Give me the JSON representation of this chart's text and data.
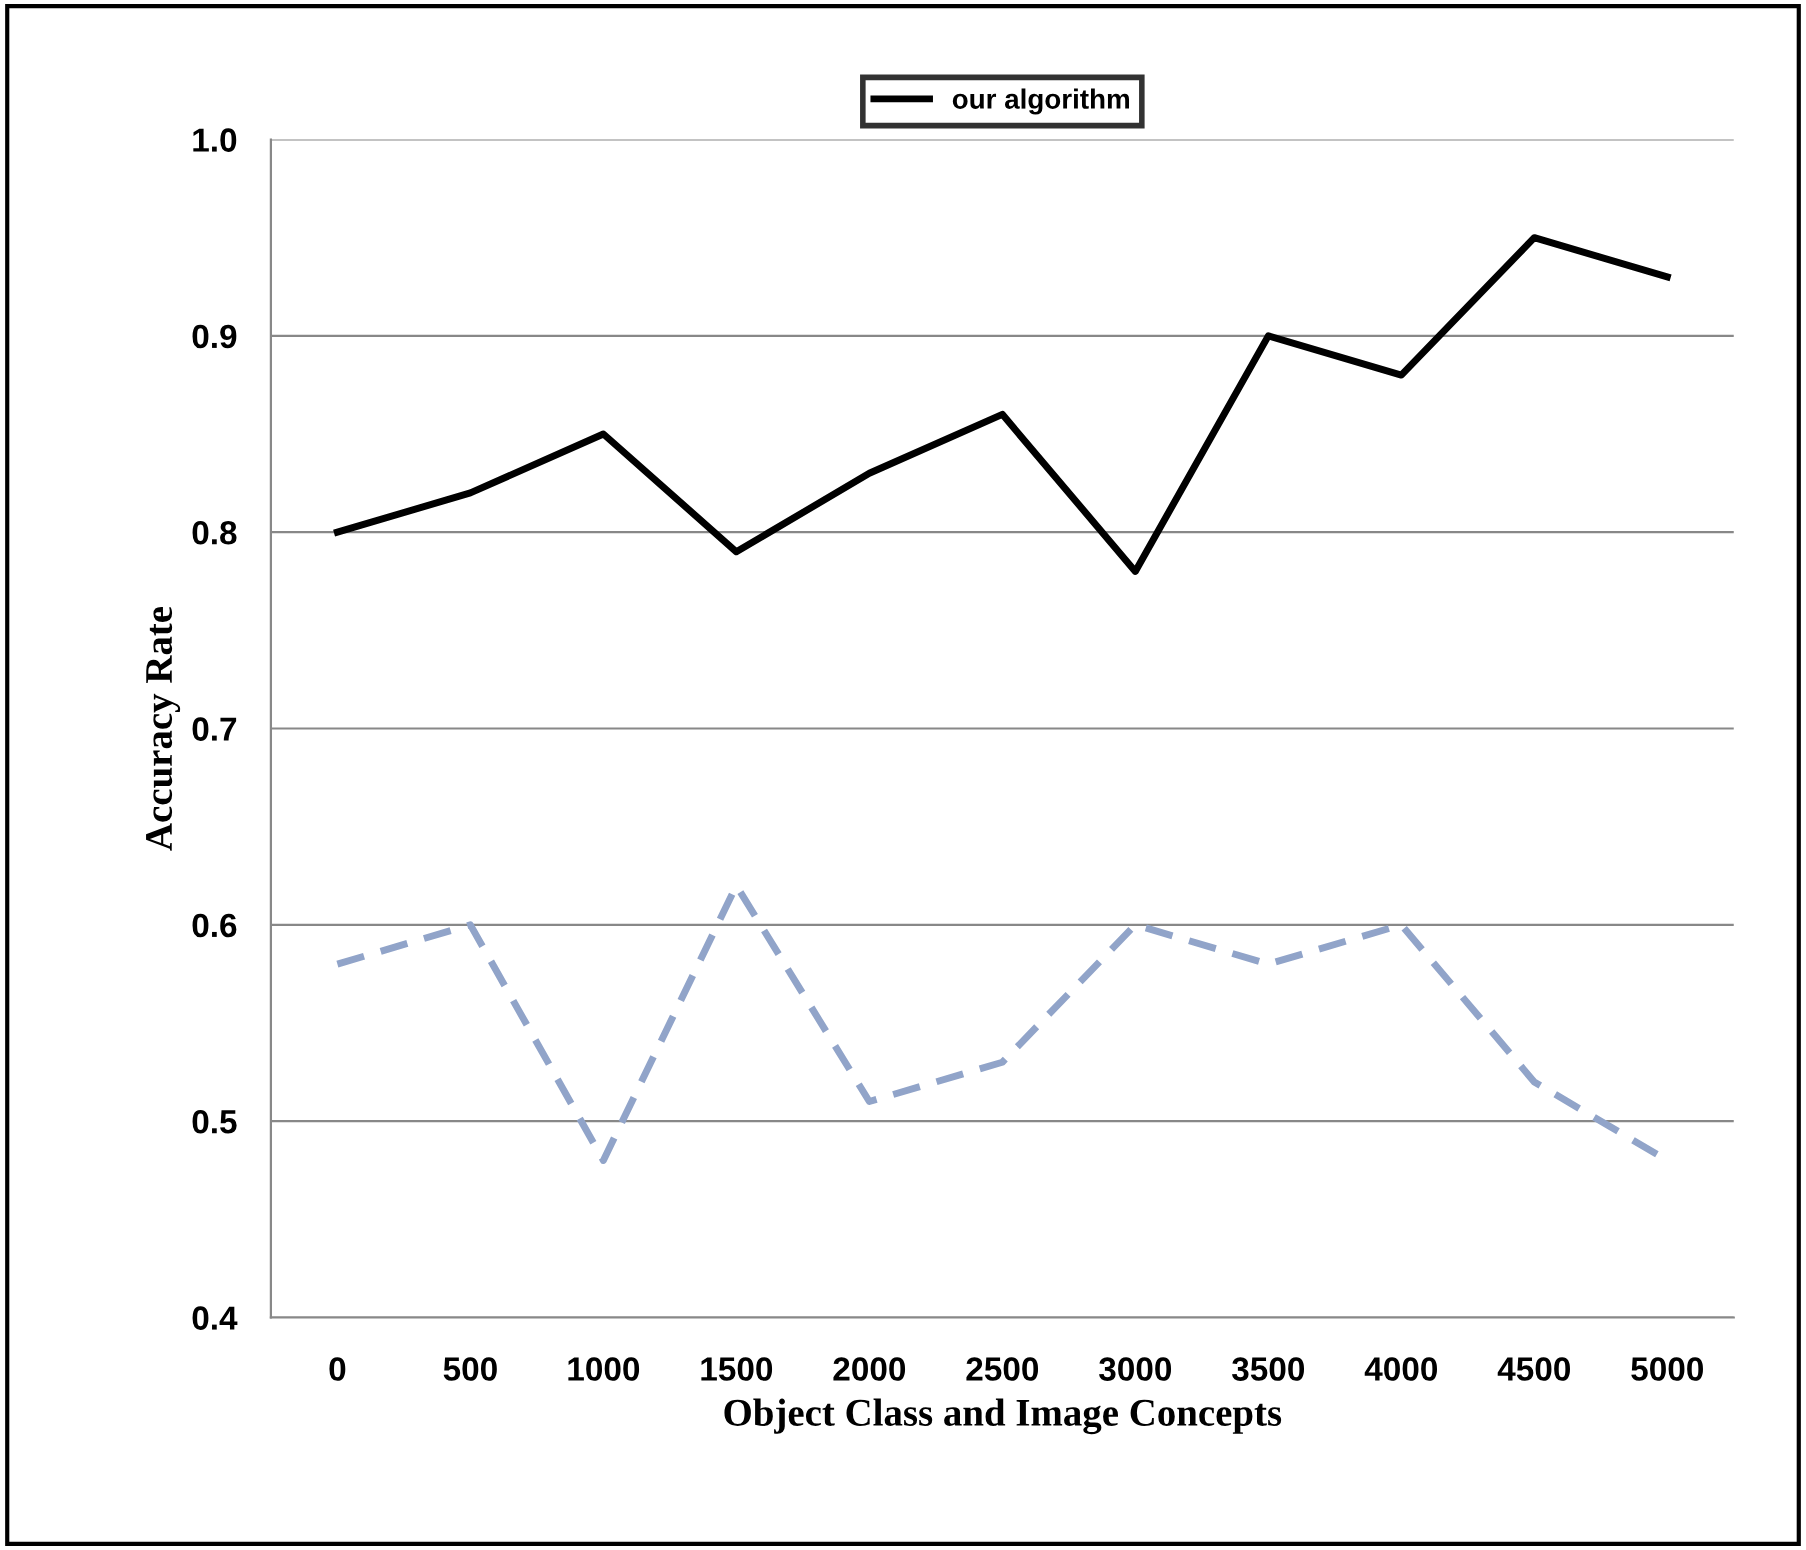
{
  "chart_data": {
    "type": "line",
    "xlabel": "Object Class and Image Concepts",
    "ylabel": "Accuracy Rate",
    "categories": [
      "0",
      "500",
      "1000",
      "1500",
      "2000",
      "2500",
      "3000",
      "3500",
      "4000",
      "4500",
      "5000"
    ],
    "series": [
      {
        "name": "our algorithm",
        "color": "#000000",
        "line_style": "solid",
        "values": [
          0.8,
          0.82,
          0.85,
          0.79,
          0.83,
          0.86,
          0.78,
          0.9,
          0.88,
          0.95,
          0.93
        ]
      },
      {
        "color": "#91a4c9",
        "line_style": "dashed",
        "values": [
          0.58,
          0.6,
          0.48,
          0.62,
          0.51,
          0.53,
          0.6,
          0.58,
          0.6,
          0.52,
          0.48
        ]
      }
    ],
    "ylim": [
      0.4,
      1.0
    ],
    "yticks": [
      {
        "value": 0.4,
        "label": "0.4"
      },
      {
        "value": 0.5,
        "label": "0.5"
      },
      {
        "value": 0.6,
        "label": "0.6"
      },
      {
        "value": 0.7,
        "label": "0.7"
      },
      {
        "value": 0.8,
        "label": "0.8"
      },
      {
        "value": 0.9,
        "label": "0.9"
      },
      {
        "value": 1.0,
        "label": "1.0"
      }
    ],
    "grid": "y",
    "legend": "top",
    "marker": "none"
  }
}
